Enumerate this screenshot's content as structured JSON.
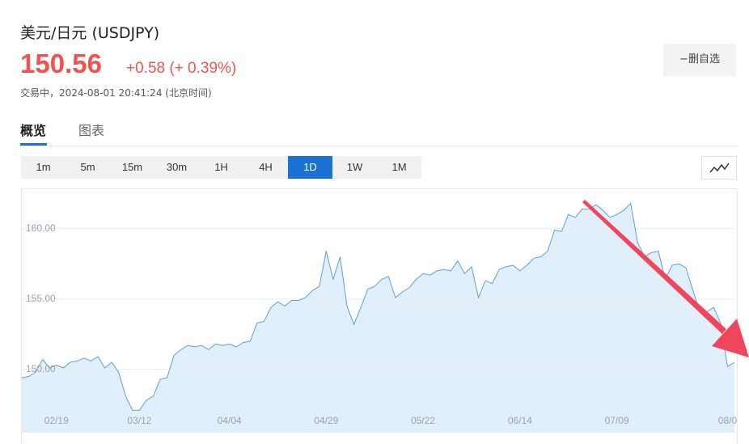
{
  "header": {
    "title": "美元/日元 (USDJPY)",
    "price": "150.56",
    "change": "+0.58 (+ 0.39%)",
    "status": "交易中，2024-08-01 20:41:24 (北京时间)",
    "watch_button": "−删自选"
  },
  "tabs": [
    "概览",
    "图表"
  ],
  "active_tab": "概览",
  "ranges": [
    "1m",
    "5m",
    "15m",
    "30m",
    "1H",
    "4H",
    "1D",
    "1W",
    "1M"
  ],
  "active_range": "1D",
  "chart_data": {
    "type": "line",
    "categories": [
      null,
      null,
      null,
      null,
      null,
      "02/19",
      null,
      null,
      null,
      null,
      null,
      null,
      null,
      null,
      null,
      null,
      null,
      "03/12",
      null,
      null,
      null,
      null,
      null,
      null,
      null,
      null,
      null,
      null,
      null,
      null,
      "04/04",
      null,
      null,
      null,
      null,
      null,
      null,
      null,
      null,
      null,
      null,
      null,
      null,
      null,
      "04/29",
      null,
      null,
      null,
      null,
      null,
      null,
      null,
      null,
      null,
      null,
      null,
      null,
      null,
      "05/22",
      null,
      null,
      null,
      null,
      null,
      null,
      null,
      null,
      null,
      null,
      null,
      null,
      null,
      "06/14",
      null,
      null,
      null,
      null,
      null,
      null,
      null,
      null,
      null,
      null,
      null,
      null,
      null,
      "07/09",
      null,
      null,
      null,
      null,
      null,
      null,
      null,
      null,
      null,
      null,
      null,
      null,
      null,
      null,
      null,
      "08/0",
      null
    ],
    "values": [
      149.4,
      149.5,
      149.8,
      150.7,
      150.1,
      150.3,
      150.1,
      150.5,
      150.6,
      150.8,
      150.6,
      150.9,
      150.1,
      150.5,
      149.8,
      148.1,
      147.1,
      147.1,
      147.8,
      148.1,
      149.3,
      149.4,
      151.0,
      151.4,
      151.7,
      151.6,
      151.7,
      151.4,
      151.8,
      151.7,
      151.8,
      151.6,
      151.9,
      152.0,
      153.3,
      153.4,
      154.4,
      154.8,
      154.5,
      154.9,
      154.9,
      155.1,
      155.6,
      155.9,
      158.4,
      156.4,
      158.0,
      154.5,
      153.2,
      154.4,
      155.7,
      155.9,
      156.4,
      156.6,
      155.1,
      155.5,
      155.8,
      156.4,
      156.8,
      156.7,
      157.0,
      157.1,
      157.0,
      157.7,
      156.8,
      157.3,
      155.1,
      156.3,
      156.1,
      157.1,
      157.3,
      157.4,
      157.0,
      157.4,
      157.9,
      158.0,
      158.4,
      159.9,
      159.8,
      161.0,
      160.8,
      161.4,
      161.4,
      161.7,
      161.3,
      160.8,
      161.0,
      161.3,
      161.8,
      159.0,
      158.0,
      158.3,
      158.4,
      156.4,
      157.4,
      157.5,
      157.2,
      155.6,
      154.1,
      154.1,
      154.4,
      153.3,
      150.2,
      150.5
    ],
    "color": "#5a9fe0",
    "fill": "#e1effb",
    "ylim": [
      145.5,
      162.8
    ],
    "yticks": [
      {
        "value": 150,
        "label": "150.00"
      },
      {
        "value": 155,
        "label": "155.00"
      },
      {
        "value": 160,
        "label": "160.00"
      }
    ],
    "grid": true
  }
}
